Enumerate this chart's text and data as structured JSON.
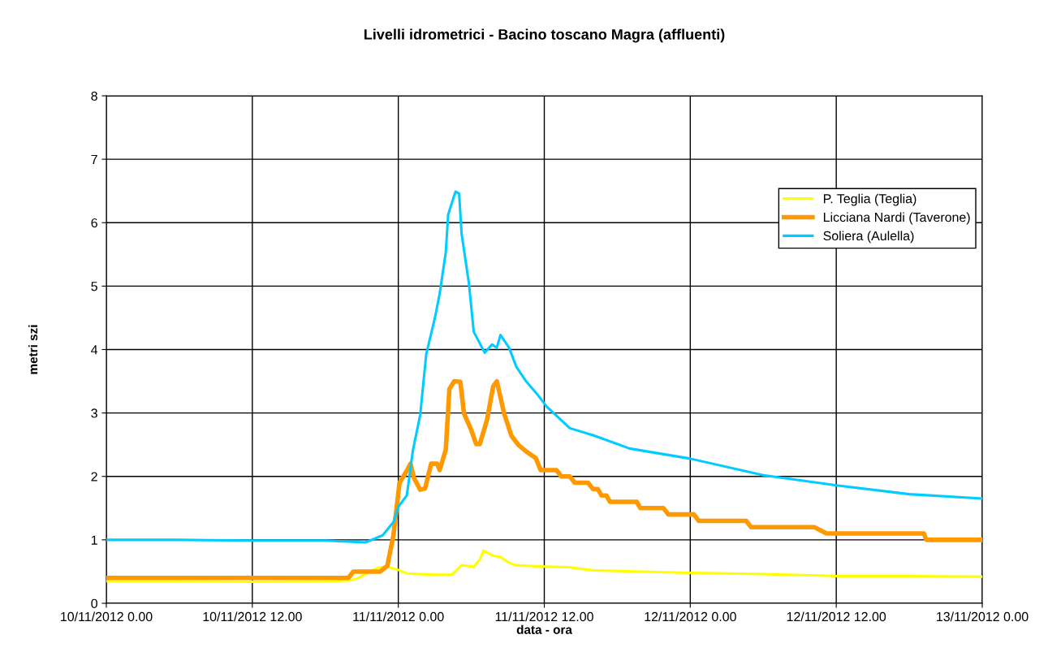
{
  "chart_data": {
    "type": "line",
    "title": "Livelli idrometrici - Bacino toscano Magra (affluenti)",
    "xlabel": "data - ora",
    "ylabel": "metri szi",
    "xlim": [
      "2012-11-10T00:00",
      "2012-11-13T00:00"
    ],
    "xticks": [
      {
        "value": "2012-11-10T00:00",
        "label": "10/11/2012 0.00"
      },
      {
        "value": "2012-11-10T12:00",
        "label": "10/11/2012 12.00"
      },
      {
        "value": "2012-11-11T00:00",
        "label": "11/11/2012 0.00"
      },
      {
        "value": "2012-11-11T12:00",
        "label": "11/11/2012 12.00"
      },
      {
        "value": "2012-11-12T00:00",
        "label": "12/11/2012 0.00"
      },
      {
        "value": "2012-11-12T12:00",
        "label": "12/11/2012 12.00"
      },
      {
        "value": "2012-11-13T00:00",
        "label": "13/11/2012 0.00"
      }
    ],
    "ylim": [
      0,
      8
    ],
    "yticks": [
      0,
      1,
      2,
      3,
      4,
      5,
      6,
      7,
      8
    ],
    "grid": true,
    "legend": "top right",
    "marker": "none",
    "line_style": "solid",
    "series": [
      {
        "name": "P. Teglia (Teglia)",
        "color": "#ffff00",
        "x": [
          "2012-11-10T00:00",
          "2012-11-10T06:00",
          "2012-11-10T12:00",
          "2012-11-10T18:00",
          "2012-11-10T20:00",
          "2012-11-10T20:36",
          "2012-11-10T22:18",
          "2012-11-10T23:00",
          "2012-11-11T00:06",
          "2012-11-11T00:42",
          "2012-11-11T02:54",
          "2012-11-11T04:24",
          "2012-11-11T05:12",
          "2012-11-11T06:12",
          "2012-11-11T06:42",
          "2012-11-11T07:00",
          "2012-11-11T07:48",
          "2012-11-11T08:24",
          "2012-11-11T09:00",
          "2012-11-11T09:36",
          "2012-11-11T12:00",
          "2012-11-11T14:00",
          "2012-11-11T16:00",
          "2012-11-11T20:00",
          "2012-11-12T00:00",
          "2012-11-12T06:00",
          "2012-11-12T12:00",
          "2012-11-12T18:00",
          "2012-11-13T00:00"
        ],
        "values": [
          0.35,
          0.35,
          0.34,
          0.35,
          0.36,
          0.39,
          0.56,
          0.58,
          0.52,
          0.47,
          0.45,
          0.45,
          0.6,
          0.58,
          0.69,
          0.83,
          0.75,
          0.73,
          0.65,
          0.6,
          0.58,
          0.57,
          0.52,
          0.5,
          0.48,
          0.46,
          0.43,
          0.43,
          0.42
        ]
      },
      {
        "name": "Licciana Nardi (Taverone)",
        "color": "#ff9900",
        "x": [
          "2012-11-10T00:00",
          "2012-11-10T19:54",
          "2012-11-10T20:18",
          "2012-11-10T22:30",
          "2012-11-10T23:06",
          "2012-11-10T23:36",
          "2012-11-11T00:06",
          "2012-11-11T00:42",
          "2012-11-11T01:00",
          "2012-11-11T01:18",
          "2012-11-11T01:48",
          "2012-11-11T02:12",
          "2012-11-11T02:42",
          "2012-11-11T03:12",
          "2012-11-11T03:24",
          "2012-11-11T03:54",
          "2012-11-11T04:12",
          "2012-11-11T04:36",
          "2012-11-11T05:06",
          "2012-11-11T05:24",
          "2012-11-11T06:00",
          "2012-11-11T06:24",
          "2012-11-11T06:42",
          "2012-11-11T07:18",
          "2012-11-11T07:48",
          "2012-11-11T08:06",
          "2012-11-11T08:42",
          "2012-11-11T09:18",
          "2012-11-11T09:54",
          "2012-11-11T10:36",
          "2012-11-11T11:18",
          "2012-11-11T11:42",
          "2012-11-11T13:00",
          "2012-11-11T13:24",
          "2012-11-11T14:06",
          "2012-11-11T14:30",
          "2012-11-11T15:36",
          "2012-11-11T16:00",
          "2012-11-11T16:24",
          "2012-11-11T16:42",
          "2012-11-11T17:06",
          "2012-11-11T17:24",
          "2012-11-11T19:36",
          "2012-11-11T19:54",
          "2012-11-11T21:48",
          "2012-11-11T22:12",
          "2012-11-12T00:18",
          "2012-11-12T00:42",
          "2012-11-12T04:36",
          "2012-11-12T05:00",
          "2012-11-12T10:12",
          "2012-11-12T11:12",
          "2012-11-12T19:12",
          "2012-11-12T19:24",
          "2012-11-13T00:00"
        ],
        "values": [
          0.4,
          0.4,
          0.5,
          0.5,
          0.59,
          1.07,
          1.9,
          2.09,
          2.2,
          1.97,
          1.79,
          1.81,
          2.2,
          2.2,
          2.1,
          2.42,
          3.38,
          3.5,
          3.49,
          2.99,
          2.73,
          2.51,
          2.51,
          2.9,
          3.42,
          3.5,
          2.99,
          2.64,
          2.49,
          2.38,
          2.29,
          2.1,
          2.1,
          2.0,
          2.0,
          1.9,
          1.9,
          1.8,
          1.8,
          1.7,
          1.7,
          1.6,
          1.6,
          1.5,
          1.5,
          1.4,
          1.4,
          1.3,
          1.3,
          1.2,
          1.2,
          1.1,
          1.1,
          1.0,
          1.0
        ]
      },
      {
        "name": "Soliera (Aulella)",
        "color": "#00ccff",
        "x": [
          "2012-11-10T00:00",
          "2012-11-10T06:00",
          "2012-11-10T12:00",
          "2012-11-10T18:00",
          "2012-11-10T21:18",
          "2012-11-10T22:42",
          "2012-11-10T23:36",
          "2012-11-11T00:00",
          "2012-11-11T00:42",
          "2012-11-11T01:12",
          "2012-11-11T01:48",
          "2012-11-11T02:18",
          "2012-11-11T03:00",
          "2012-11-11T03:24",
          "2012-11-11T03:54",
          "2012-11-11T04:06",
          "2012-11-11T04:42",
          "2012-11-11T05:00",
          "2012-11-11T05:12",
          "2012-11-11T05:48",
          "2012-11-11T06:12",
          "2012-11-11T07:06",
          "2012-11-11T07:42",
          "2012-11-11T08:06",
          "2012-11-11T08:24",
          "2012-11-11T09:06",
          "2012-11-11T09:42",
          "2012-11-11T10:30",
          "2012-11-11T11:24",
          "2012-11-11T12:12",
          "2012-11-11T14:06",
          "2012-11-11T16:00",
          "2012-11-11T19:00",
          "2012-11-12T00:00",
          "2012-11-12T06:00",
          "2012-11-12T12:00",
          "2012-11-12T18:00",
          "2012-11-13T00:00"
        ],
        "values": [
          1.0,
          1.0,
          0.99,
          0.99,
          0.96,
          1.07,
          1.28,
          1.52,
          1.7,
          2.41,
          2.97,
          3.93,
          4.49,
          4.88,
          5.53,
          6.13,
          6.49,
          6.46,
          5.83,
          5.05,
          4.28,
          3.95,
          4.08,
          4.03,
          4.23,
          4.03,
          3.73,
          3.5,
          3.3,
          3.1,
          2.76,
          2.65,
          2.44,
          2.28,
          2.02,
          1.86,
          1.72,
          1.65
        ]
      }
    ]
  }
}
